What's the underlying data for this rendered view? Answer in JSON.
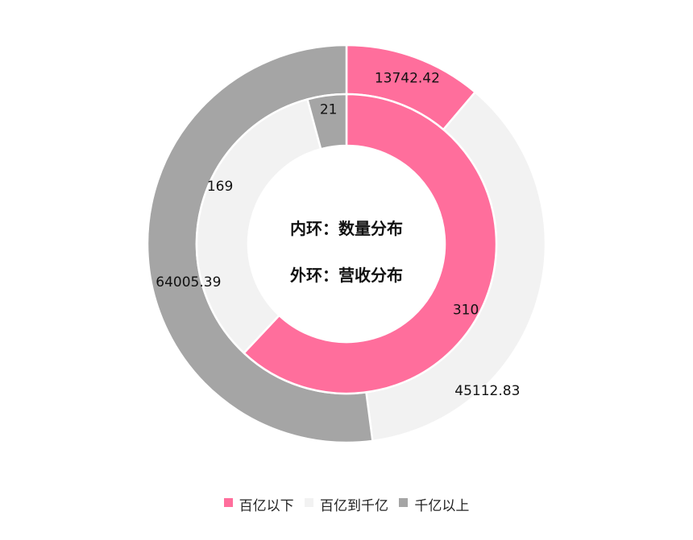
{
  "chart_data": {
    "type": "pie",
    "center_text": [
      "内环：数量分布",
      "外环：营收分布"
    ],
    "categories": [
      "百亿以下",
      "百亿到千亿",
      "千亿以上"
    ],
    "colors": [
      "#FF6E9C",
      "#F2F2F2",
      "#A5A5A5"
    ],
    "series": [
      {
        "ring": "inner",
        "values": [
          310,
          169,
          21
        ],
        "labels": [
          "310",
          "169",
          "21"
        ]
      },
      {
        "ring": "outer",
        "values": [
          13742.42,
          45112.83,
          64005.39
        ],
        "labels": [
          "13742.42",
          "45112.83",
          "64005.39"
        ]
      }
    ],
    "legend_position": "bottom"
  }
}
